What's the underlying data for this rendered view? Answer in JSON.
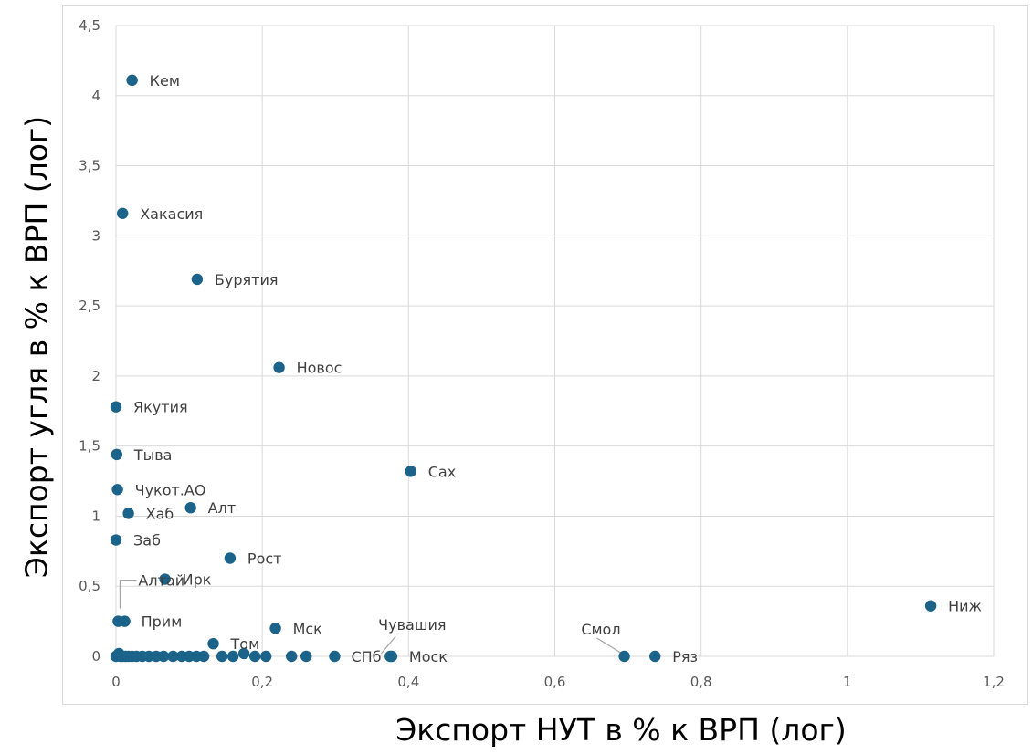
{
  "chart_data": {
    "type": "scatter",
    "xlabel": "Экспорт НУТ в % к ВРП (лог)",
    "ylabel": "Экспорт угля в % к ВРП (лог)",
    "xlim": [
      0,
      1.2
    ],
    "ylim": [
      0,
      4.5
    ],
    "x_ticks": [
      0,
      0.2,
      0.4,
      0.6,
      0.8,
      1,
      1.2
    ],
    "x_tick_labels": [
      "0",
      "0,2",
      "0,4",
      "0,6",
      "0,8",
      "1",
      "1,2"
    ],
    "y_ticks": [
      0,
      0.5,
      1,
      1.5,
      2,
      2.5,
      3,
      3.5,
      4,
      4.5
    ],
    "y_tick_labels": [
      "0",
      "0,5",
      "1",
      "1,5",
      "2",
      "2,5",
      "3",
      "3,5",
      "4",
      "4,5"
    ],
    "grid": true,
    "marker_color": "#1b6389",
    "points": [
      {
        "label": "Кем",
        "x": 0.022,
        "y": 4.11
      },
      {
        "label": "Хакасия",
        "x": 0.009,
        "y": 3.16
      },
      {
        "label": "Бурятия",
        "x": 0.111,
        "y": 2.69
      },
      {
        "label": "Новос",
        "x": 0.223,
        "y": 2.06
      },
      {
        "label": "Якутия",
        "x": 0.0,
        "y": 1.78
      },
      {
        "label": "Тыва",
        "x": 0.001,
        "y": 1.44
      },
      {
        "label": "Сах",
        "x": 0.403,
        "y": 1.32
      },
      {
        "label": "Чукот.АО",
        "x": 0.002,
        "y": 1.19
      },
      {
        "label": "Алт",
        "x": 0.102,
        "y": 1.06
      },
      {
        "label": "Хаб",
        "x": 0.017,
        "y": 1.02
      },
      {
        "label": "Заб",
        "x": 0.0,
        "y": 0.83
      },
      {
        "label": "Рост",
        "x": 0.156,
        "y": 0.7
      },
      {
        "label": "Ирк",
        "x": 0.067,
        "y": 0.55
      },
      {
        "label": "Ниж",
        "x": 1.114,
        "y": 0.36
      },
      {
        "label": "Алтай",
        "x": 0.003,
        "y": 0.25
      },
      {
        "label": "Прим",
        "x": 0.012,
        "y": 0.25
      },
      {
        "label": "Мск",
        "x": 0.218,
        "y": 0.2
      },
      {
        "label": "Том",
        "x": 0.133,
        "y": 0.09
      },
      {
        "label": "Чувашия",
        "x": 0.375,
        "y": 0.0
      },
      {
        "label": "Моск",
        "x": 0.377,
        "y": 0.0
      },
      {
        "label": "Смол",
        "x": 0.695,
        "y": 0.0
      },
      {
        "label": "Ряз",
        "x": 0.737,
        "y": 0.0
      },
      {
        "label": "СПб",
        "x": 0.299,
        "y": 0.0
      },
      {
        "label": "",
        "x": 0.0,
        "y": 0.0
      },
      {
        "label": "",
        "x": 0.004,
        "y": 0.02
      },
      {
        "label": "",
        "x": 0.006,
        "y": 0.0
      },
      {
        "label": "",
        "x": 0.009,
        "y": 0.0
      },
      {
        "label": "",
        "x": 0.013,
        "y": 0.0
      },
      {
        "label": "",
        "x": 0.017,
        "y": 0.0
      },
      {
        "label": "",
        "x": 0.022,
        "y": 0.0
      },
      {
        "label": "",
        "x": 0.028,
        "y": 0.0
      },
      {
        "label": "",
        "x": 0.036,
        "y": 0.0
      },
      {
        "label": "",
        "x": 0.045,
        "y": 0.0
      },
      {
        "label": "",
        "x": 0.055,
        "y": 0.0
      },
      {
        "label": "",
        "x": 0.065,
        "y": 0.0
      },
      {
        "label": "",
        "x": 0.078,
        "y": 0.0
      },
      {
        "label": "",
        "x": 0.09,
        "y": 0.0
      },
      {
        "label": "",
        "x": 0.1,
        "y": 0.0
      },
      {
        "label": "",
        "x": 0.11,
        "y": 0.0
      },
      {
        "label": "",
        "x": 0.12,
        "y": 0.0
      },
      {
        "label": "",
        "x": 0.145,
        "y": 0.0
      },
      {
        "label": "",
        "x": 0.16,
        "y": 0.0
      },
      {
        "label": "",
        "x": 0.175,
        "y": 0.02
      },
      {
        "label": "",
        "x": 0.19,
        "y": 0.0
      },
      {
        "label": "",
        "x": 0.205,
        "y": 0.0
      },
      {
        "label": "",
        "x": 0.24,
        "y": 0.0
      },
      {
        "label": "",
        "x": 0.26,
        "y": 0.0
      }
    ]
  }
}
